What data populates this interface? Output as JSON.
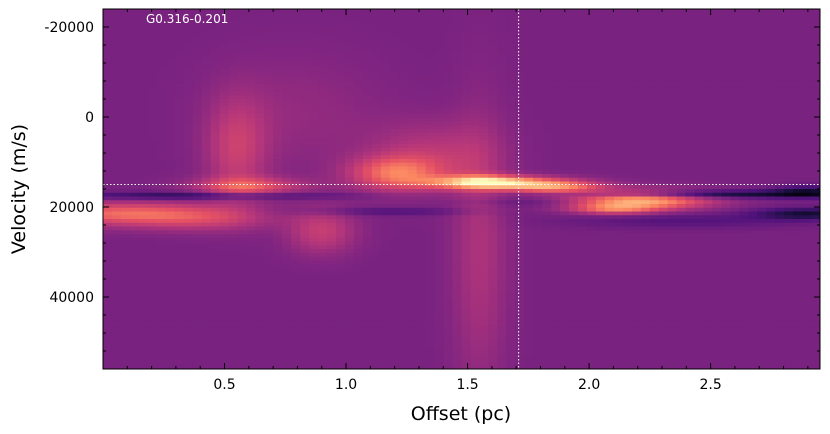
{
  "chart_data": {
    "type": "heatmap",
    "colormap": "magma",
    "annotation": "G0.316-0.201",
    "xlabel": "Offset (pc)",
    "ylabel": "Velocity (m/s)",
    "xlim": [
      0.0,
      2.95
    ],
    "ylim": [
      56000,
      -24000
    ],
    "y_inverted": true,
    "x_ticks": [
      {
        "value": 0.5,
        "label": "0.5"
      },
      {
        "value": 1.0,
        "label": "1.0"
      },
      {
        "value": 1.5,
        "label": "1.5"
      },
      {
        "value": 2.0,
        "label": "2.0"
      },
      {
        "value": 2.5,
        "label": "2.5"
      }
    ],
    "y_ticks": [
      {
        "value": -20000,
        "label": "-20000"
      },
      {
        "value": 0,
        "label": "0"
      },
      {
        "value": 20000,
        "label": "20000"
      },
      {
        "value": 40000,
        "label": "40000"
      }
    ],
    "reference_lines": {
      "vertical_offset_pc": 1.71,
      "horizontal_velocity_ms": 15000,
      "color": "#ffffff",
      "style": "dotted"
    },
    "background_level": 0.36,
    "emission_components": [
      {
        "x": 1.58,
        "y": 14500,
        "sx": 0.16,
        "sy": 1000,
        "amp": 0.55
      },
      {
        "x": 1.85,
        "y": 15500,
        "sx": 0.14,
        "sy": 1100,
        "amp": 0.4
      },
      {
        "x": 2.2,
        "y": 18500,
        "sx": 0.2,
        "sy": 1500,
        "amp": 0.5
      },
      {
        "x": 2.1,
        "y": 20500,
        "sx": 0.12,
        "sy": 800,
        "amp": 0.25
      },
      {
        "x": 1.2,
        "y": 12500,
        "sx": 0.13,
        "sy": 2600,
        "amp": 0.3
      },
      {
        "x": 1.35,
        "y": 9000,
        "sx": 0.18,
        "sy": 5500,
        "amp": 0.15
      },
      {
        "x": 0.55,
        "y": 7000,
        "sx": 0.09,
        "sy": 8000,
        "amp": 0.18
      },
      {
        "x": 0.6,
        "y": 15500,
        "sx": 0.16,
        "sy": 1400,
        "amp": 0.25
      },
      {
        "x": 0.05,
        "y": 21500,
        "sx": 0.25,
        "sy": 1800,
        "amp": 0.3
      },
      {
        "x": 0.4,
        "y": 22500,
        "sx": 0.2,
        "sy": 2000,
        "amp": 0.18
      },
      {
        "x": 0.9,
        "y": 25500,
        "sx": 0.1,
        "sy": 3500,
        "amp": 0.18
      },
      {
        "x": 1.55,
        "y": 30000,
        "sx": 0.08,
        "sy": 22000,
        "amp": 0.12
      },
      {
        "x": 0.8,
        "y": -1000,
        "sx": 0.25,
        "sy": 9000,
        "amp": 0.06
      },
      {
        "x": 2.5,
        "y": 17200,
        "sx": 0.45,
        "sy": 600,
        "amp": -0.28
      },
      {
        "x": 2.9,
        "y": 16500,
        "sx": 0.1,
        "sy": 900,
        "amp": -0.2
      },
      {
        "x": 2.9,
        "y": 21500,
        "sx": 0.15,
        "sy": 900,
        "amp": -0.25
      },
      {
        "x": 0.4,
        "y": 17500,
        "sx": 0.4,
        "sy": 600,
        "amp": -0.22
      },
      {
        "x": 1.2,
        "y": 21000,
        "sx": 0.25,
        "sy": 600,
        "amp": -0.12
      },
      {
        "x": 2.4,
        "y": 23000,
        "sx": 0.35,
        "sy": 1200,
        "amp": -0.1
      },
      {
        "x": 1.75,
        "y": 19000,
        "sx": 0.25,
        "sy": 700,
        "amp": -0.08
      }
    ]
  }
}
